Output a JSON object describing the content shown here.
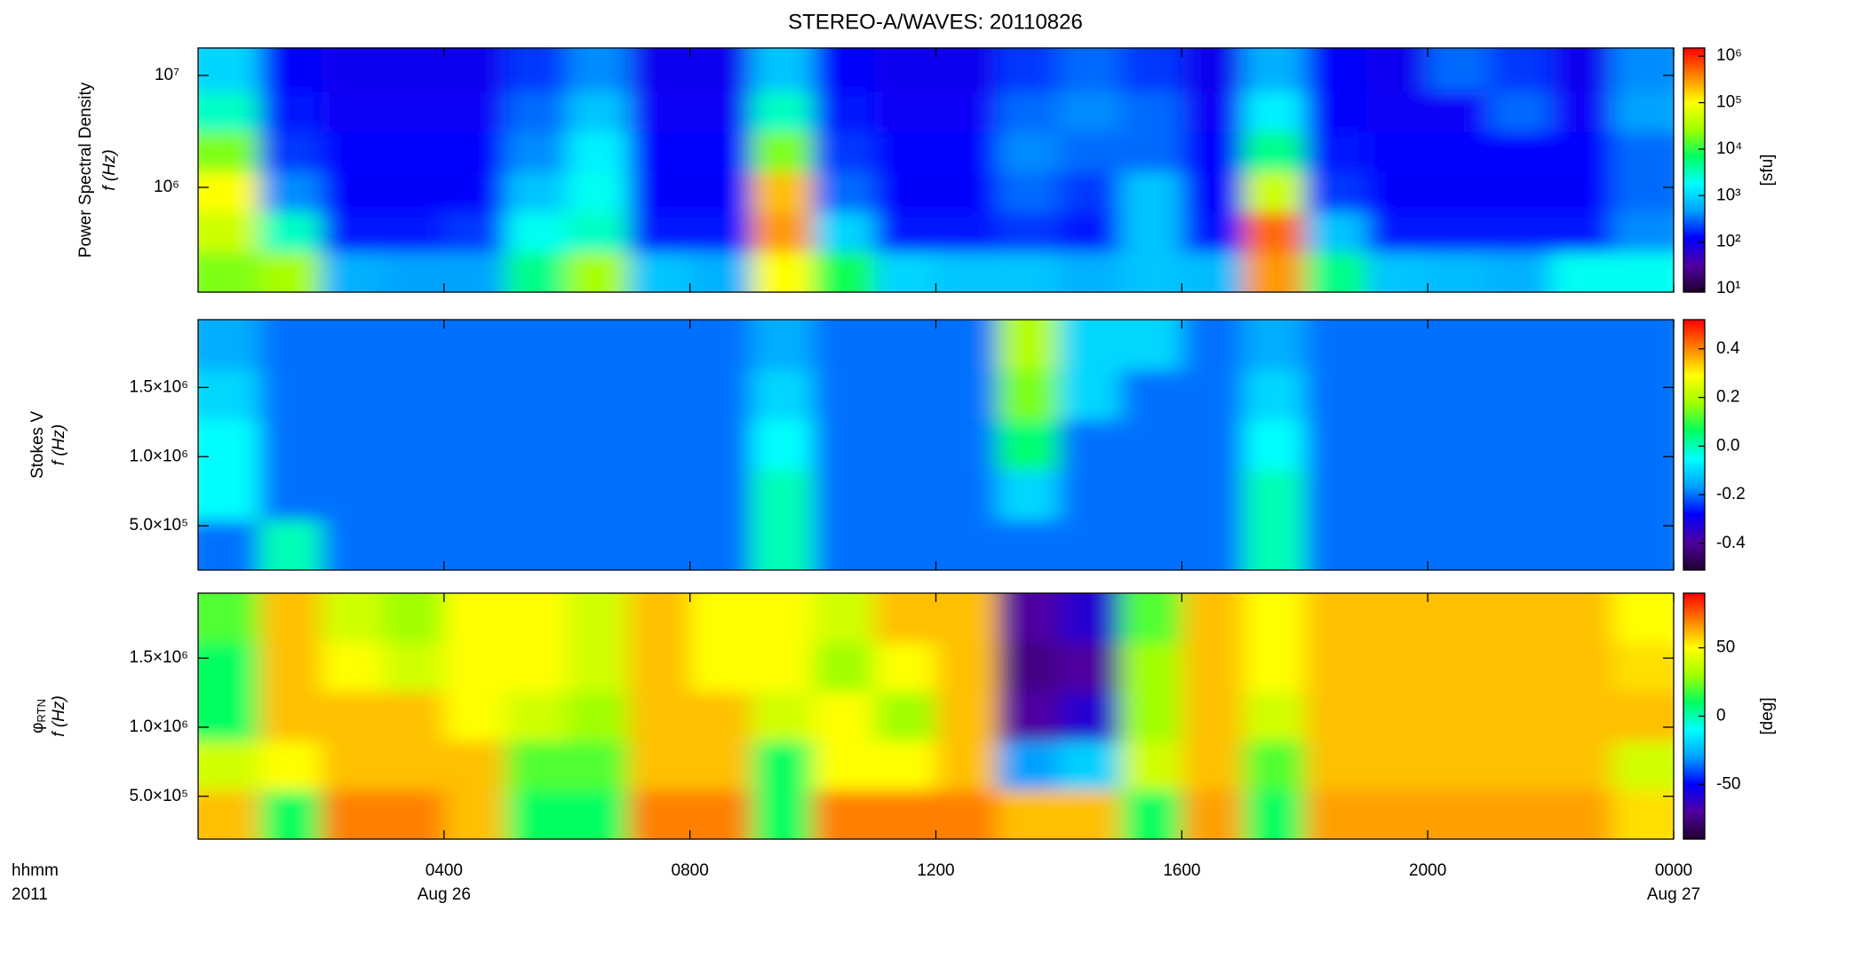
{
  "chart_data": [
    {
      "type": "heatmap",
      "title": "STEREO-A/WAVES: 20110826",
      "ylabel": "Power Spectral Density",
      "ylabel2": "f (Hz)",
      "ylog": true,
      "ylim": [
        116000,
        17600000
      ],
      "yticks": [
        {
          "value": 1000000,
          "label": "10⁶"
        },
        {
          "value": 10000000,
          "label": "10⁷"
        }
      ],
      "clog": true,
      "clim": [
        8.4,
        1500000
      ],
      "cticks": [
        {
          "value": 10,
          "label": "10¹"
        },
        {
          "value": 100,
          "label": "10²"
        },
        {
          "value": 1000,
          "label": "10³"
        },
        {
          "value": 10000,
          "label": "10⁴"
        },
        {
          "value": 100000,
          "label": "10⁵"
        },
        {
          "value": 1000000,
          "label": "10⁶"
        }
      ],
      "clabel": "[sfu]",
      "colormap": [
        "#200030",
        "#5000a0",
        "#0000ff",
        "#00a0ff",
        "#00ffff",
        "#00ff60",
        "#a0ff00",
        "#ffff00",
        "#ff8000",
        "#ff0000"
      ],
      "xbins": [
        0,
        1,
        2,
        3,
        4,
        5,
        6,
        7,
        8,
        9,
        10,
        11,
        12,
        13,
        14,
        15,
        16,
        17,
        18,
        19,
        20,
        21,
        22,
        23,
        24
      ],
      "ybins": [
        116000,
        265000,
        605000,
        1380000,
        3150000,
        7200000,
        17600000
      ],
      "z": [
        [
          20000,
          30000,
          600,
          500,
          500,
          5000,
          30000,
          800,
          600,
          100000,
          8000,
          1000,
          800,
          800,
          600,
          800,
          700,
          300000,
          5000,
          800,
          700,
          600,
          2000,
          2000
        ],
        [
          50000,
          3000,
          150,
          150,
          200,
          2000,
          3000,
          150,
          150,
          300000,
          1000,
          150,
          150,
          200,
          150,
          800,
          150,
          500000,
          800,
          150,
          150,
          150,
          150,
          400
        ],
        [
          100000,
          400,
          120,
          120,
          120,
          800,
          2000,
          120,
          120,
          200000,
          300,
          120,
          120,
          300,
          200,
          800,
          120,
          50000,
          200,
          120,
          120,
          120,
          120,
          300
        ],
        [
          20000,
          200,
          130,
          130,
          130,
          400,
          1500,
          130,
          130,
          20000,
          200,
          130,
          130,
          400,
          300,
          300,
          130,
          5000,
          150,
          130,
          130,
          130,
          130,
          300
        ],
        [
          3000,
          150,
          110,
          110,
          110,
          300,
          800,
          110,
          110,
          3000,
          150,
          110,
          110,
          300,
          400,
          300,
          110,
          1500,
          120,
          110,
          110,
          300,
          110,
          500
        ],
        [
          1000,
          120,
          100,
          100,
          100,
          200,
          400,
          100,
          100,
          800,
          120,
          100,
          100,
          200,
          300,
          200,
          100,
          600,
          120,
          100,
          300,
          200,
          100,
          400
        ]
      ]
    },
    {
      "type": "heatmap",
      "ylabel": "Stokes V",
      "ylabel2": "f (Hz)",
      "ylog": false,
      "ylim": [
        180000,
        1990000
      ],
      "yticks": [
        {
          "value": 500000,
          "label": "5.0×10⁵"
        },
        {
          "value": 1000000,
          "label": "1.0×10⁶"
        },
        {
          "value": 1500000,
          "label": "1.5×10⁶"
        }
      ],
      "clog": false,
      "clim": [
        -0.51,
        0.52
      ],
      "cticks": [
        -0.4,
        -0.2,
        {
          "value": 0,
          "label": "0.0"
        },
        0.2,
        0.4
      ],
      "colormap": [
        "#200030",
        "#5000a0",
        "#0000ff",
        "#00a0ff",
        "#00ffff",
        "#00ff60",
        "#a0ff00",
        "#ffff00",
        "#ff8000",
        "#ff0000"
      ],
      "xbins": [
        0,
        1,
        2,
        3,
        4,
        5,
        6,
        7,
        8,
        9,
        10,
        11,
        12,
        13,
        14,
        15,
        16,
        17,
        18,
        19,
        20,
        21,
        22,
        23,
        24
      ],
      "ybins": [
        180000,
        542000,
        904000,
        1266000,
        1628000,
        1990000
      ],
      "z": [
        [
          -0.2,
          0.0,
          -0.2,
          -0.2,
          -0.2,
          -0.2,
          -0.2,
          -0.2,
          -0.2,
          0.0,
          -0.2,
          -0.2,
          -0.2,
          -0.2,
          -0.2,
          -0.2,
          -0.2,
          0.0,
          -0.2,
          -0.2,
          -0.2,
          -0.2,
          -0.2,
          -0.2
        ],
        [
          -0.05,
          -0.2,
          -0.2,
          -0.2,
          -0.2,
          -0.2,
          -0.2,
          -0.2,
          -0.2,
          0.0,
          -0.2,
          -0.2,
          -0.2,
          -0.1,
          -0.2,
          -0.2,
          -0.2,
          0.0,
          -0.2,
          -0.2,
          -0.2,
          -0.2,
          -0.2,
          -0.2
        ],
        [
          -0.05,
          -0.2,
          -0.2,
          -0.2,
          -0.2,
          -0.2,
          -0.2,
          -0.2,
          -0.2,
          -0.05,
          -0.2,
          -0.2,
          -0.2,
          0.05,
          -0.2,
          -0.2,
          -0.2,
          -0.05,
          -0.2,
          -0.2,
          -0.2,
          -0.2,
          -0.2,
          -0.2
        ],
        [
          -0.1,
          -0.2,
          -0.2,
          -0.2,
          -0.2,
          -0.2,
          -0.2,
          -0.2,
          -0.2,
          -0.1,
          -0.2,
          -0.2,
          -0.2,
          0.15,
          -0.1,
          -0.2,
          -0.2,
          -0.1,
          -0.2,
          -0.2,
          -0.2,
          -0.2,
          -0.2,
          -0.2
        ],
        [
          -0.15,
          -0.2,
          -0.2,
          -0.2,
          -0.2,
          -0.2,
          -0.2,
          -0.2,
          -0.2,
          -0.15,
          -0.2,
          -0.2,
          -0.2,
          0.2,
          -0.1,
          -0.1,
          -0.2,
          -0.15,
          -0.2,
          -0.2,
          -0.2,
          -0.2,
          -0.2,
          -0.2
        ]
      ]
    },
    {
      "type": "heatmap",
      "ylabel": "φ",
      "ylabel_subscript": "RTN",
      "ylabel2": "f (Hz)",
      "ylog": false,
      "ylim": [
        190000,
        1970000
      ],
      "yticks": [
        {
          "value": 500000,
          "label": "5.0×10⁵"
        },
        {
          "value": 1000000,
          "label": "1.0×10⁶"
        },
        {
          "value": 1500000,
          "label": "1.5×10⁶"
        }
      ],
      "clog": false,
      "clim": [
        -90,
        90
      ],
      "cticks": [
        -50,
        0,
        50
      ],
      "clabel": "[deg]",
      "colormap": [
        "#200030",
        "#5000a0",
        "#0000ff",
        "#00a0ff",
        "#00ffff",
        "#00ff60",
        "#a0ff00",
        "#ffff00",
        "#ff8000",
        "#ff0000"
      ],
      "xbins": [
        0,
        1,
        2,
        3,
        4,
        5,
        6,
        7,
        8,
        9,
        10,
        11,
        12,
        13,
        14,
        15,
        16,
        17,
        18,
        19,
        20,
        21,
        22,
        23,
        24
      ],
      "ybins": [
        190000,
        546000,
        902000,
        1258000,
        1614000,
        1970000
      ],
      "z": [
        [
          60,
          10,
          70,
          70,
          60,
          10,
          10,
          70,
          70,
          10,
          70,
          70,
          70,
          60,
          60,
          10,
          65,
          10,
          65,
          65,
          65,
          65,
          65,
          55
        ],
        [
          40,
          50,
          60,
          60,
          60,
          20,
          20,
          60,
          60,
          10,
          50,
          50,
          60,
          -30,
          -20,
          40,
          60,
          20,
          60,
          60,
          60,
          60,
          60,
          40
        ],
        [
          10,
          60,
          60,
          60,
          50,
          40,
          30,
          60,
          60,
          40,
          50,
          30,
          60,
          -70,
          -60,
          30,
          60,
          40,
          60,
          60,
          60,
          60,
          60,
          60
        ],
        [
          10,
          60,
          50,
          40,
          50,
          50,
          40,
          60,
          50,
          50,
          30,
          50,
          60,
          -75,
          -70,
          30,
          60,
          50,
          60,
          60,
          60,
          60,
          60,
          55
        ],
        [
          20,
          60,
          40,
          30,
          50,
          50,
          40,
          60,
          50,
          50,
          40,
          60,
          60,
          -70,
          -60,
          20,
          60,
          50,
          60,
          60,
          60,
          60,
          60,
          50
        ]
      ],
      "xlim": [
        0,
        24
      ],
      "xticks": [
        {
          "value": 4,
          "label": "0400"
        },
        {
          "value": 8,
          "label": "0800"
        },
        {
          "value": 12,
          "label": "1200"
        },
        {
          "value": 16,
          "label": "1600"
        },
        {
          "value": 20,
          "label": "2000"
        },
        {
          "value": 24,
          "label": "0000"
        }
      ],
      "xdate_labels": [
        {
          "value": 4,
          "label": "Aug 26"
        },
        {
          "value": 24,
          "label": "Aug 27"
        }
      ],
      "xlabel": "hhmm",
      "xlabel2": "2011"
    }
  ]
}
